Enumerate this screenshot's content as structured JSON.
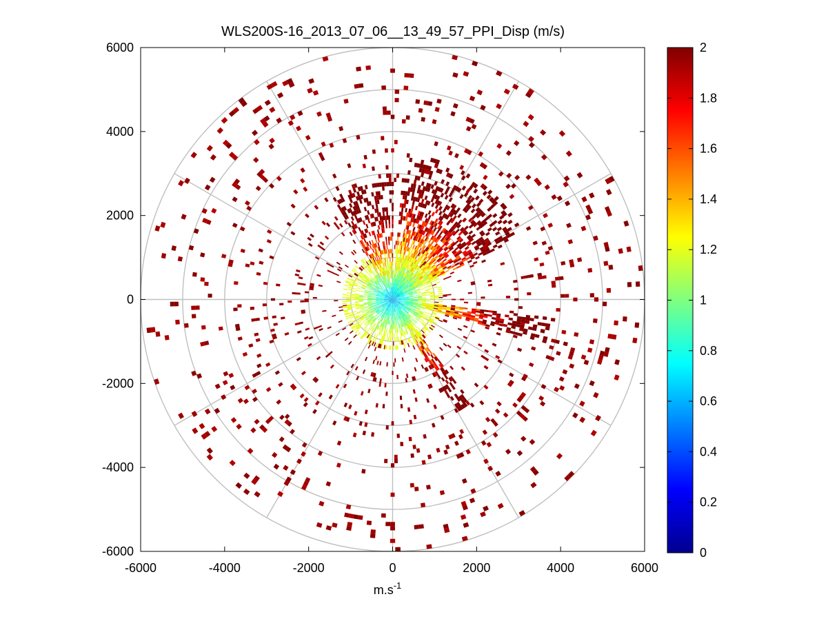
{
  "chart_data": {
    "type": "scatter",
    "title": "WLS200S-16_2013_07_06__13_49_57_PPI_Disp (m/s)",
    "xlabel": "m.s",
    "xlabel_superscript": "-1",
    "ylabel": "",
    "xlim": [
      -6000,
      6000
    ],
    "ylim": [
      -6000,
      6000
    ],
    "xticks": [
      -6000,
      -4000,
      -2000,
      0,
      2000,
      4000,
      6000
    ],
    "yticks": [
      6000,
      4000,
      2000,
      0,
      -2000,
      -4000,
      -6000
    ],
    "polar_grid": {
      "ring_radii": [
        1000,
        2000,
        3000,
        4000,
        5000,
        6000
      ],
      "spoke_angles_deg": [
        0,
        30,
        60,
        90,
        120,
        150,
        180,
        210,
        240,
        270,
        300,
        330
      ]
    },
    "colorbar": {
      "min": 0,
      "max": 2,
      "colormap": "jet",
      "ticks": [
        2,
        1.8,
        1.6,
        1.4,
        1.2,
        1,
        0.8,
        0.6,
        0.4,
        0.2,
        0
      ]
    },
    "sectors": [
      {
        "name": "main north-east lobe",
        "az_from": 5,
        "az_to": 65,
        "r_min": 100,
        "r_max": 3500,
        "value_range": [
          0.6,
          2.0
        ],
        "density": "high"
      },
      {
        "name": "east streak",
        "az_from": 97,
        "az_to": 106,
        "r_min": 300,
        "r_max": 3800,
        "value_range": [
          0.7,
          2.0
        ],
        "density": "high"
      },
      {
        "name": "south-east streak",
        "az_from": 143,
        "az_to": 152,
        "r_min": 300,
        "r_max": 3200,
        "value_range": [
          0.7,
          2.0
        ],
        "density": "high"
      },
      {
        "name": "near-field core",
        "az_from": 0,
        "az_to": 360,
        "r_min": 0,
        "r_max": 1200,
        "value_range": [
          0.5,
          1.2
        ],
        "density": "high"
      },
      {
        "name": "north-west wedge",
        "az_from": 330,
        "az_to": 360,
        "r_min": 300,
        "r_max": 2800,
        "value_range": [
          0.9,
          2.0
        ],
        "density": "medium"
      },
      {
        "name": "outer sparse returns",
        "az_from": 0,
        "az_to": 360,
        "r_min": 1000,
        "r_max": 6000,
        "value_range": [
          1.6,
          2.0
        ],
        "density": "low"
      }
    ],
    "colors": {
      "axis": "#000000",
      "grid": "#bfbfbf",
      "background": "#ffffff",
      "dominant_outer_value_color": "#800000"
    }
  }
}
